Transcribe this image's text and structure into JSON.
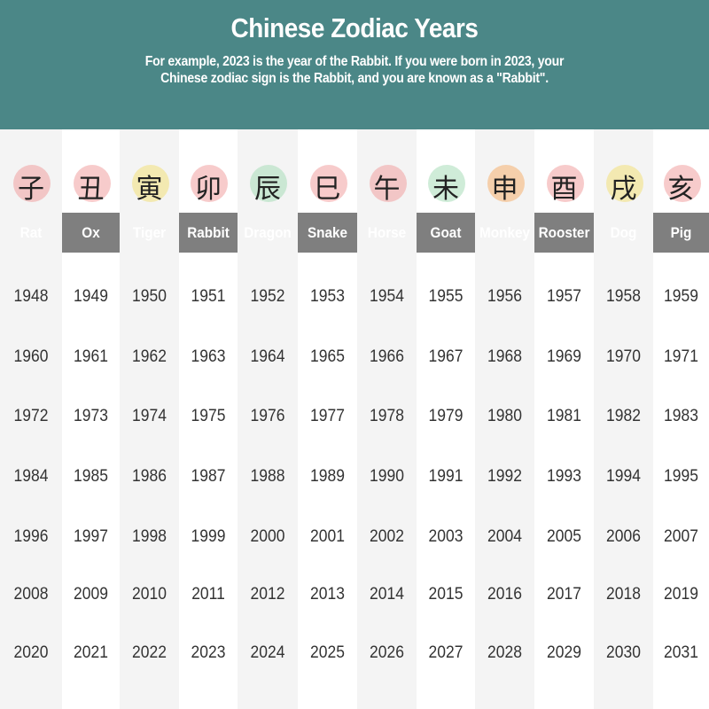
{
  "header": {
    "title": "Chinese Zodiac Years",
    "subtitle": "For example, 2023 is the year of the Rabbit. If you were born in 2023, your Chinese zodiac sign is the Rabbit, and you are known as a \"Rabbit\"."
  },
  "colors": {
    "header_bg": "#4b8787",
    "label_bar": "#7f7f7f",
    "stripe": "#f4f4f4"
  },
  "signs": [
    {
      "name": "Rat",
      "char": "子",
      "blob": "#f0a0a0",
      "years": [
        "1948",
        "1960",
        "1972",
        "1984",
        "1996",
        "2008",
        "2020"
      ]
    },
    {
      "name": "Ox",
      "char": "丑",
      "blob": "#f0a0a0",
      "years": [
        "1949",
        "1961",
        "1973",
        "1985",
        "1997",
        "2009",
        "2021"
      ]
    },
    {
      "name": "Tiger",
      "char": "寅",
      "blob": "#f2e07a",
      "years": [
        "1950",
        "1962",
        "1974",
        "1986",
        "1998",
        "2010",
        "2022"
      ]
    },
    {
      "name": "Rabbit",
      "char": "卯",
      "blob": "#f0a0a0",
      "years": [
        "1951",
        "1963",
        "1975",
        "1987",
        "1999",
        "2011",
        "2023"
      ]
    },
    {
      "name": "Dragon",
      "char": "辰",
      "blob": "#a8dcb8",
      "years": [
        "1952",
        "1964",
        "1976",
        "1988",
        "2000",
        "2012",
        "2024"
      ]
    },
    {
      "name": "Snake",
      "char": "巳",
      "blob": "#f0a0a0",
      "years": [
        "1953",
        "1965",
        "1977",
        "1989",
        "2001",
        "2013",
        "2025"
      ]
    },
    {
      "name": "Horse",
      "char": "午",
      "blob": "#f0a0a0",
      "years": [
        "1954",
        "1966",
        "1978",
        "1990",
        "2002",
        "2014",
        "2026"
      ]
    },
    {
      "name": "Goat",
      "char": "未",
      "blob": "#a8dcb8",
      "years": [
        "1955",
        "1967",
        "1979",
        "1991",
        "2003",
        "2015",
        "2027"
      ]
    },
    {
      "name": "Monkey",
      "char": "申",
      "blob": "#f6b070",
      "years": [
        "1956",
        "1968",
        "1980",
        "1992",
        "2004",
        "2016",
        "2028"
      ]
    },
    {
      "name": "Rooster",
      "char": "酉",
      "blob": "#f0a0a0",
      "years": [
        "1957",
        "1969",
        "1981",
        "1993",
        "2005",
        "2017",
        "2029"
      ]
    },
    {
      "name": "Dog",
      "char": "戌",
      "blob": "#f2e07a",
      "years": [
        "1958",
        "1970",
        "1982",
        "1994",
        "2006",
        "2018",
        "2030"
      ]
    },
    {
      "name": "Pig",
      "char": "亥",
      "blob": "#f0a0a0",
      "years": [
        "1959",
        "1971",
        "1983",
        "1995",
        "2007",
        "2019",
        "2031"
      ]
    }
  ]
}
